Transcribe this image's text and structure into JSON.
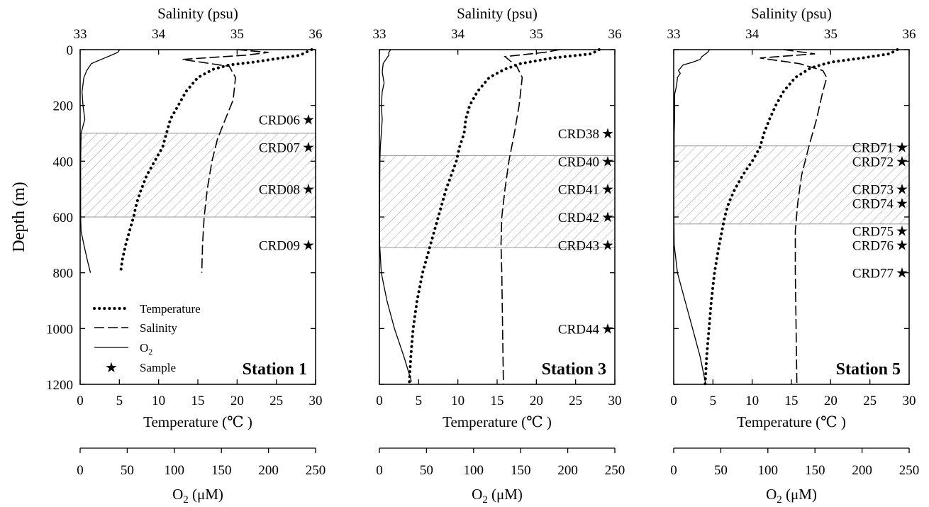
{
  "chart_data": [
    {
      "type": "line",
      "station_label": "Station 1",
      "y_axis": {
        "label": "Depth (m)",
        "range": [
          1200,
          0
        ],
        "ticks": [
          0,
          200,
          400,
          600,
          800,
          1000,
          1200
        ]
      },
      "salinity_axis": {
        "label": "Salinity (psu)",
        "range": [
          33,
          36
        ],
        "ticks": [
          33,
          34,
          35,
          36
        ]
      },
      "temperature_axis": {
        "label": "Temperature (℃ )",
        "range": [
          0,
          30
        ],
        "ticks": [
          0,
          5,
          10,
          15,
          20,
          25,
          30
        ]
      },
      "o2_axis": {
        "label_main": "O",
        "label_sub": "2",
        "label_unit": " (μM)",
        "range": [
          0,
          250
        ],
        "ticks": [
          0,
          50,
          100,
          150,
          200,
          250
        ]
      },
      "shaded_band": [
        300,
        600
      ],
      "series": [
        {
          "name": "Temperature",
          "style": "dotted",
          "points": [
            [
              29.5,
              0
            ],
            [
              28,
              20
            ],
            [
              22,
              45
            ],
            [
              19,
              55
            ],
            [
              17,
              70
            ],
            [
              15,
              100
            ],
            [
              13.5,
              150
            ],
            [
              12.5,
              200
            ],
            [
              11.5,
              250
            ],
            [
              11,
              300
            ],
            [
              10.5,
              350
            ],
            [
              9.5,
              400
            ],
            [
              8.5,
              450
            ],
            [
              7.8,
              500
            ],
            [
              7.2,
              550
            ],
            [
              6.8,
              600
            ],
            [
              6.3,
              650
            ],
            [
              5.8,
              700
            ],
            [
              5.4,
              750
            ],
            [
              5.2,
              790
            ]
          ]
        },
        {
          "name": "Salinity",
          "style": "dashed",
          "points": [
            [
              35.0,
              0
            ],
            [
              35.4,
              10
            ],
            [
              35.1,
              20
            ],
            [
              34.3,
              35
            ],
            [
              34.9,
              60
            ],
            [
              34.98,
              100
            ],
            [
              34.95,
              180
            ],
            [
              34.85,
              250
            ],
            [
              34.75,
              320
            ],
            [
              34.68,
              400
            ],
            [
              34.62,
              500
            ],
            [
              34.58,
              600
            ],
            [
              34.56,
              700
            ],
            [
              34.55,
              800
            ]
          ]
        },
        {
          "name": "O2",
          "style": "solid",
          "points": [
            [
              42,
              0
            ],
            [
              40,
              10
            ],
            [
              33,
              20
            ],
            [
              26,
              30
            ],
            [
              12,
              50
            ],
            [
              7,
              75
            ],
            [
              4,
              100
            ],
            [
              2,
              150
            ],
            [
              3,
              200
            ],
            [
              5,
              250
            ],
            [
              1,
              300
            ],
            [
              0.5,
              400
            ],
            [
              0.5,
              500
            ],
            [
              0.5,
              600
            ],
            [
              1,
              650
            ],
            [
              4,
              700
            ],
            [
              8,
              760
            ],
            [
              11,
              800
            ]
          ]
        }
      ],
      "samples": [
        {
          "label": "CRD06",
          "depth": 250
        },
        {
          "label": "CRD07",
          "depth": 350
        },
        {
          "label": "CRD08",
          "depth": 500
        },
        {
          "label": "CRD09",
          "depth": 700
        }
      ],
      "legend": [
        {
          "label": "Temperature",
          "style": "dotted"
        },
        {
          "label": "Salinity",
          "style": "dashed"
        },
        {
          "label": "O2",
          "sub": "2",
          "style": "solid"
        },
        {
          "label": "Sample",
          "style": "star"
        }
      ]
    },
    {
      "type": "line",
      "station_label": "Station 3",
      "y_axis": {
        "range": [
          1200,
          0
        ]
      },
      "salinity_axis": {
        "label": "Salinity (psu)",
        "range": [
          33,
          36
        ],
        "ticks": [
          33,
          34,
          35,
          36
        ]
      },
      "temperature_axis": {
        "label": "Temperature (℃ )",
        "range": [
          0,
          30
        ],
        "ticks": [
          0,
          5,
          10,
          15,
          20,
          25,
          30
        ]
      },
      "o2_axis": {
        "label_main": "O",
        "label_sub": "2",
        "label_unit": " (μM)",
        "range": [
          0,
          250
        ],
        "ticks": [
          0,
          50,
          100,
          150,
          200,
          250
        ]
      },
      "shaded_band": [
        380,
        710
      ],
      "series": [
        {
          "name": "Temperature",
          "style": "dotted",
          "points": [
            [
              28,
              0
            ],
            [
              27,
              15
            ],
            [
              22,
              30
            ],
            [
              18,
              50
            ],
            [
              16,
              70
            ],
            [
              14,
              100
            ],
            [
              12.5,
              150
            ],
            [
              11.5,
              200
            ],
            [
              11,
              250
            ],
            [
              10.8,
              300
            ],
            [
              10.2,
              350
            ],
            [
              9.8,
              400
            ],
            [
              8.5,
              500
            ],
            [
              7.5,
              600
            ],
            [
              6.5,
              700
            ],
            [
              5.5,
              800
            ],
            [
              4.8,
              900
            ],
            [
              4.3,
              1000
            ],
            [
              4,
              1100
            ],
            [
              3.8,
              1200
            ]
          ]
        },
        {
          "name": "Salinity",
          "style": "dashed",
          "points": [
            [
              35.3,
              0
            ],
            [
              35.1,
              10
            ],
            [
              34.6,
              25
            ],
            [
              34.75,
              60
            ],
            [
              34.82,
              100
            ],
            [
              34.78,
              200
            ],
            [
              34.72,
              300
            ],
            [
              34.65,
              400
            ],
            [
              34.6,
              500
            ],
            [
              34.56,
              600
            ],
            [
              34.55,
              700
            ],
            [
              34.56,
              800
            ],
            [
              34.57,
              1000
            ],
            [
              34.58,
              1200
            ]
          ]
        },
        {
          "name": "O2",
          "style": "solid",
          "points": [
            [
              12,
              0
            ],
            [
              10,
              10
            ],
            [
              10,
              20
            ],
            [
              8,
              30
            ],
            [
              4,
              50
            ],
            [
              3,
              80
            ],
            [
              5,
              120
            ],
            [
              3,
              150
            ],
            [
              2,
              200
            ],
            [
              3,
              250
            ],
            [
              2,
              300
            ],
            [
              1,
              350
            ],
            [
              0.5,
              400
            ],
            [
              0.3,
              500
            ],
            [
              0.2,
              600
            ],
            [
              0.3,
              700
            ],
            [
              2,
              800
            ],
            [
              8,
              900
            ],
            [
              16,
              1000
            ],
            [
              26,
              1100
            ],
            [
              34,
              1190
            ]
          ]
        }
      ],
      "samples": [
        {
          "label": "CRD38",
          "depth": 300
        },
        {
          "label": "CRD40",
          "depth": 400
        },
        {
          "label": "CRD41",
          "depth": 500
        },
        {
          "label": "CRD42",
          "depth": 600
        },
        {
          "label": "CRD43",
          "depth": 700
        },
        {
          "label": "CRD44",
          "depth": 1000
        }
      ]
    },
    {
      "type": "line",
      "station_label": "Station 5",
      "y_axis": {
        "range": [
          1200,
          0
        ]
      },
      "salinity_axis": {
        "label": "Salinity (psu)",
        "range": [
          33,
          36
        ],
        "ticks": [
          33,
          34,
          35,
          36
        ]
      },
      "temperature_axis": {
        "label": "Temperature (℃ )",
        "range": [
          0,
          30
        ],
        "ticks": [
          0,
          5,
          10,
          15,
          20,
          25,
          30
        ]
      },
      "o2_axis": {
        "label_main": "O",
        "label_sub": "2",
        "label_unit": " (μM)",
        "range": [
          0,
          250
        ],
        "ticks": [
          0,
          50,
          100,
          150,
          200,
          250
        ]
      },
      "shaded_band": [
        345,
        625
      ],
      "series": [
        {
          "name": "Temperature",
          "style": "dotted",
          "points": [
            [
              28.5,
              0
            ],
            [
              27.5,
              15
            ],
            [
              24,
              30
            ],
            [
              20,
              45
            ],
            [
              17.5,
              65
            ],
            [
              15.5,
              100
            ],
            [
              14,
              150
            ],
            [
              13,
              200
            ],
            [
              12.2,
              250
            ],
            [
              11.5,
              300
            ],
            [
              11,
              350
            ],
            [
              10,
              400
            ],
            [
              8.8,
              450
            ],
            [
              7.8,
              500
            ],
            [
              7,
              550
            ],
            [
              6.5,
              600
            ],
            [
              5.8,
              700
            ],
            [
              5.2,
              800
            ],
            [
              4.8,
              900
            ],
            [
              4.5,
              1000
            ],
            [
              4.2,
              1100
            ],
            [
              4,
              1200
            ]
          ]
        },
        {
          "name": "Salinity",
          "style": "dashed",
          "points": [
            [
              34.4,
              0
            ],
            [
              34.8,
              15
            ],
            [
              34.1,
              30
            ],
            [
              34.6,
              50
            ],
            [
              34.9,
              75
            ],
            [
              34.95,
              100
            ],
            [
              34.9,
              150
            ],
            [
              34.82,
              250
            ],
            [
              34.72,
              350
            ],
            [
              34.63,
              450
            ],
            [
              34.58,
              550
            ],
            [
              34.55,
              650
            ],
            [
              34.55,
              800
            ],
            [
              34.56,
              1000
            ],
            [
              34.57,
              1200
            ]
          ]
        },
        {
          "name": "O2",
          "style": "solid",
          "points": [
            [
              38,
              0
            ],
            [
              36,
              10
            ],
            [
              30,
              25
            ],
            [
              28,
              35
            ],
            [
              20,
              45
            ],
            [
              10,
              55
            ],
            [
              5,
              75
            ],
            [
              7,
              85
            ],
            [
              4,
              100
            ],
            [
              3,
              130
            ],
            [
              1,
              160
            ],
            [
              1,
              200
            ],
            [
              1,
              250
            ],
            [
              0.5,
              300
            ],
            [
              0.5,
              400
            ],
            [
              0.2,
              500
            ],
            [
              0.2,
              600
            ],
            [
              0.5,
              700
            ],
            [
              4,
              800
            ],
            [
              12,
              900
            ],
            [
              20,
              1000
            ],
            [
              28,
              1100
            ],
            [
              34,
              1200
            ]
          ]
        }
      ],
      "samples": [
        {
          "label": "CRD71",
          "depth": 350
        },
        {
          "label": "CRD72",
          "depth": 400
        },
        {
          "label": "CRD73",
          "depth": 500
        },
        {
          "label": "CRD74",
          "depth": 550
        },
        {
          "label": "CRD75",
          "depth": 650
        },
        {
          "label": "CRD76",
          "depth": 700
        },
        {
          "label": "CRD77",
          "depth": 800
        }
      ]
    }
  ]
}
